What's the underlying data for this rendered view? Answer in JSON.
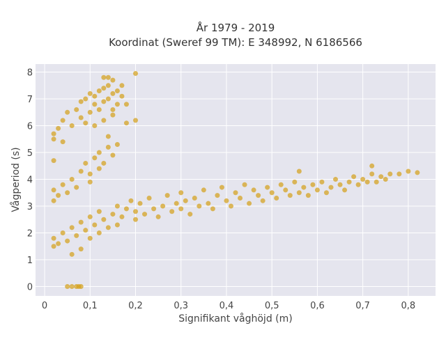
{
  "chart_data": {
    "type": "scatter",
    "title_lines": [
      "År 1979 - 2019",
      "Koordinat (Sweref 99 TM): E 348992, N 6186566"
    ],
    "xlabel": "Signifikant våghöjd (m)",
    "ylabel": "Vågperiod (s)",
    "xlim": [
      -0.02,
      0.86
    ],
    "ylim": [
      -0.35,
      8.3
    ],
    "x_ticks": [
      0,
      0.1,
      0.2,
      0.3,
      0.4,
      0.5,
      0.6,
      0.7,
      0.8
    ],
    "x_tick_labels": [
      "0",
      "0,1",
      "0,2",
      "0,3",
      "0,4",
      "0,5",
      "0,6",
      "0,7",
      "0,8"
    ],
    "y_ticks": [
      0,
      1,
      2,
      3,
      4,
      5,
      6,
      7,
      8
    ],
    "y_tick_labels": [
      "0",
      "1",
      "2",
      "3",
      "4",
      "5",
      "6",
      "7",
      "8"
    ],
    "grid": true,
    "colors": {
      "marker": "#d4a017",
      "plot_bg": "#e5e5ee",
      "grid": "#ffffff"
    },
    "marker_opacity": 0.7,
    "series": [
      {
        "points": [
          [
            0.05,
            0.0
          ],
          [
            0.06,
            0.0
          ],
          [
            0.07,
            0.0
          ],
          [
            0.08,
            0.0
          ],
          [
            0.075,
            0.0
          ],
          [
            0.02,
            1.5
          ],
          [
            0.02,
            1.8
          ],
          [
            0.03,
            1.6
          ],
          [
            0.04,
            2.0
          ],
          [
            0.05,
            1.7
          ],
          [
            0.06,
            1.2
          ],
          [
            0.06,
            2.2
          ],
          [
            0.07,
            1.9
          ],
          [
            0.08,
            2.4
          ],
          [
            0.08,
            1.4
          ],
          [
            0.09,
            2.1
          ],
          [
            0.1,
            2.6
          ],
          [
            0.1,
            1.8
          ],
          [
            0.11,
            2.3
          ],
          [
            0.12,
            2.8
          ],
          [
            0.12,
            2.0
          ],
          [
            0.13,
            2.5
          ],
          [
            0.14,
            2.2
          ],
          [
            0.15,
            2.7
          ],
          [
            0.16,
            3.0
          ],
          [
            0.16,
            2.3
          ],
          [
            0.17,
            2.6
          ],
          [
            0.18,
            2.9
          ],
          [
            0.19,
            3.2
          ],
          [
            0.2,
            2.5
          ],
          [
            0.2,
            2.8
          ],
          [
            0.21,
            3.1
          ],
          [
            0.22,
            2.7
          ],
          [
            0.23,
            3.3
          ],
          [
            0.24,
            2.9
          ],
          [
            0.25,
            2.6
          ],
          [
            0.26,
            3.0
          ],
          [
            0.27,
            3.4
          ],
          [
            0.28,
            2.8
          ],
          [
            0.29,
            3.1
          ],
          [
            0.3,
            3.5
          ],
          [
            0.3,
            2.9
          ],
          [
            0.31,
            3.2
          ],
          [
            0.32,
            2.7
          ],
          [
            0.33,
            3.3
          ],
          [
            0.34,
            3.0
          ],
          [
            0.35,
            3.6
          ],
          [
            0.36,
            3.1
          ],
          [
            0.37,
            2.9
          ],
          [
            0.38,
            3.4
          ],
          [
            0.39,
            3.7
          ],
          [
            0.4,
            3.2
          ],
          [
            0.41,
            3.0
          ],
          [
            0.42,
            3.5
          ],
          [
            0.43,
            3.3
          ],
          [
            0.44,
            3.8
          ],
          [
            0.45,
            3.1
          ],
          [
            0.46,
            3.6
          ],
          [
            0.47,
            3.4
          ],
          [
            0.48,
            3.2
          ],
          [
            0.49,
            3.7
          ],
          [
            0.5,
            3.5
          ],
          [
            0.51,
            3.3
          ],
          [
            0.52,
            3.8
          ],
          [
            0.53,
            3.6
          ],
          [
            0.54,
            3.4
          ],
          [
            0.55,
            3.9
          ],
          [
            0.56,
            3.5
          ],
          [
            0.57,
            3.7
          ],
          [
            0.58,
            3.4
          ],
          [
            0.59,
            3.8
          ],
          [
            0.6,
            3.6
          ],
          [
            0.61,
            3.9
          ],
          [
            0.62,
            3.5
          ],
          [
            0.63,
            3.7
          ],
          [
            0.64,
            4.0
          ],
          [
            0.65,
            3.8
          ],
          [
            0.66,
            3.6
          ],
          [
            0.67,
            3.9
          ],
          [
            0.68,
            4.1
          ],
          [
            0.69,
            3.8
          ],
          [
            0.7,
            4.0
          ],
          [
            0.71,
            3.9
          ],
          [
            0.72,
            4.2
          ],
          [
            0.73,
            3.9
          ],
          [
            0.74,
            4.1
          ],
          [
            0.75,
            4.0
          ],
          [
            0.76,
            4.2
          ],
          [
            0.78,
            4.2
          ],
          [
            0.8,
            4.3
          ],
          [
            0.82,
            4.25
          ],
          [
            0.72,
            4.5
          ],
          [
            0.56,
            4.3
          ],
          [
            0.02,
            3.2
          ],
          [
            0.02,
            3.6
          ],
          [
            0.03,
            3.4
          ],
          [
            0.04,
            3.8
          ],
          [
            0.05,
            3.5
          ],
          [
            0.06,
            4.0
          ],
          [
            0.07,
            3.7
          ],
          [
            0.08,
            4.3
          ],
          [
            0.09,
            4.6
          ],
          [
            0.1,
            4.2
          ],
          [
            0.11,
            4.8
          ],
          [
            0.12,
            5.0
          ],
          [
            0.13,
            4.6
          ],
          [
            0.14,
            5.2
          ],
          [
            0.15,
            4.9
          ],
          [
            0.16,
            5.3
          ],
          [
            0.12,
            4.4
          ],
          [
            0.1,
            3.9
          ],
          [
            0.02,
            5.5
          ],
          [
            0.02,
            5.7
          ],
          [
            0.03,
            5.9
          ],
          [
            0.04,
            6.2
          ],
          [
            0.04,
            5.4
          ],
          [
            0.05,
            6.5
          ],
          [
            0.06,
            6.0
          ],
          [
            0.07,
            6.6
          ],
          [
            0.08,
            6.3
          ],
          [
            0.08,
            6.9
          ],
          [
            0.09,
            7.0
          ],
          [
            0.1,
            6.5
          ],
          [
            0.1,
            7.2
          ],
          [
            0.11,
            6.8
          ],
          [
            0.11,
            7.1
          ],
          [
            0.12,
            7.3
          ],
          [
            0.12,
            6.6
          ],
          [
            0.13,
            7.4
          ],
          [
            0.13,
            6.9
          ],
          [
            0.14,
            7.0
          ],
          [
            0.14,
            7.5
          ],
          [
            0.15,
            7.2
          ],
          [
            0.15,
            6.6
          ],
          [
            0.16,
            7.3
          ],
          [
            0.16,
            6.8
          ],
          [
            0.17,
            7.5
          ],
          [
            0.18,
            6.8
          ],
          [
            0.18,
            6.1
          ],
          [
            0.15,
            6.4
          ],
          [
            0.2,
            6.2
          ],
          [
            0.13,
            7.8
          ],
          [
            0.14,
            7.8
          ],
          [
            0.15,
            7.7
          ],
          [
            0.2,
            7.95
          ],
          [
            0.02,
            4.7
          ],
          [
            0.09,
            6.1
          ],
          [
            0.11,
            6.0
          ],
          [
            0.13,
            6.2
          ],
          [
            0.14,
            5.6
          ],
          [
            0.17,
            7.1
          ]
        ]
      }
    ]
  }
}
